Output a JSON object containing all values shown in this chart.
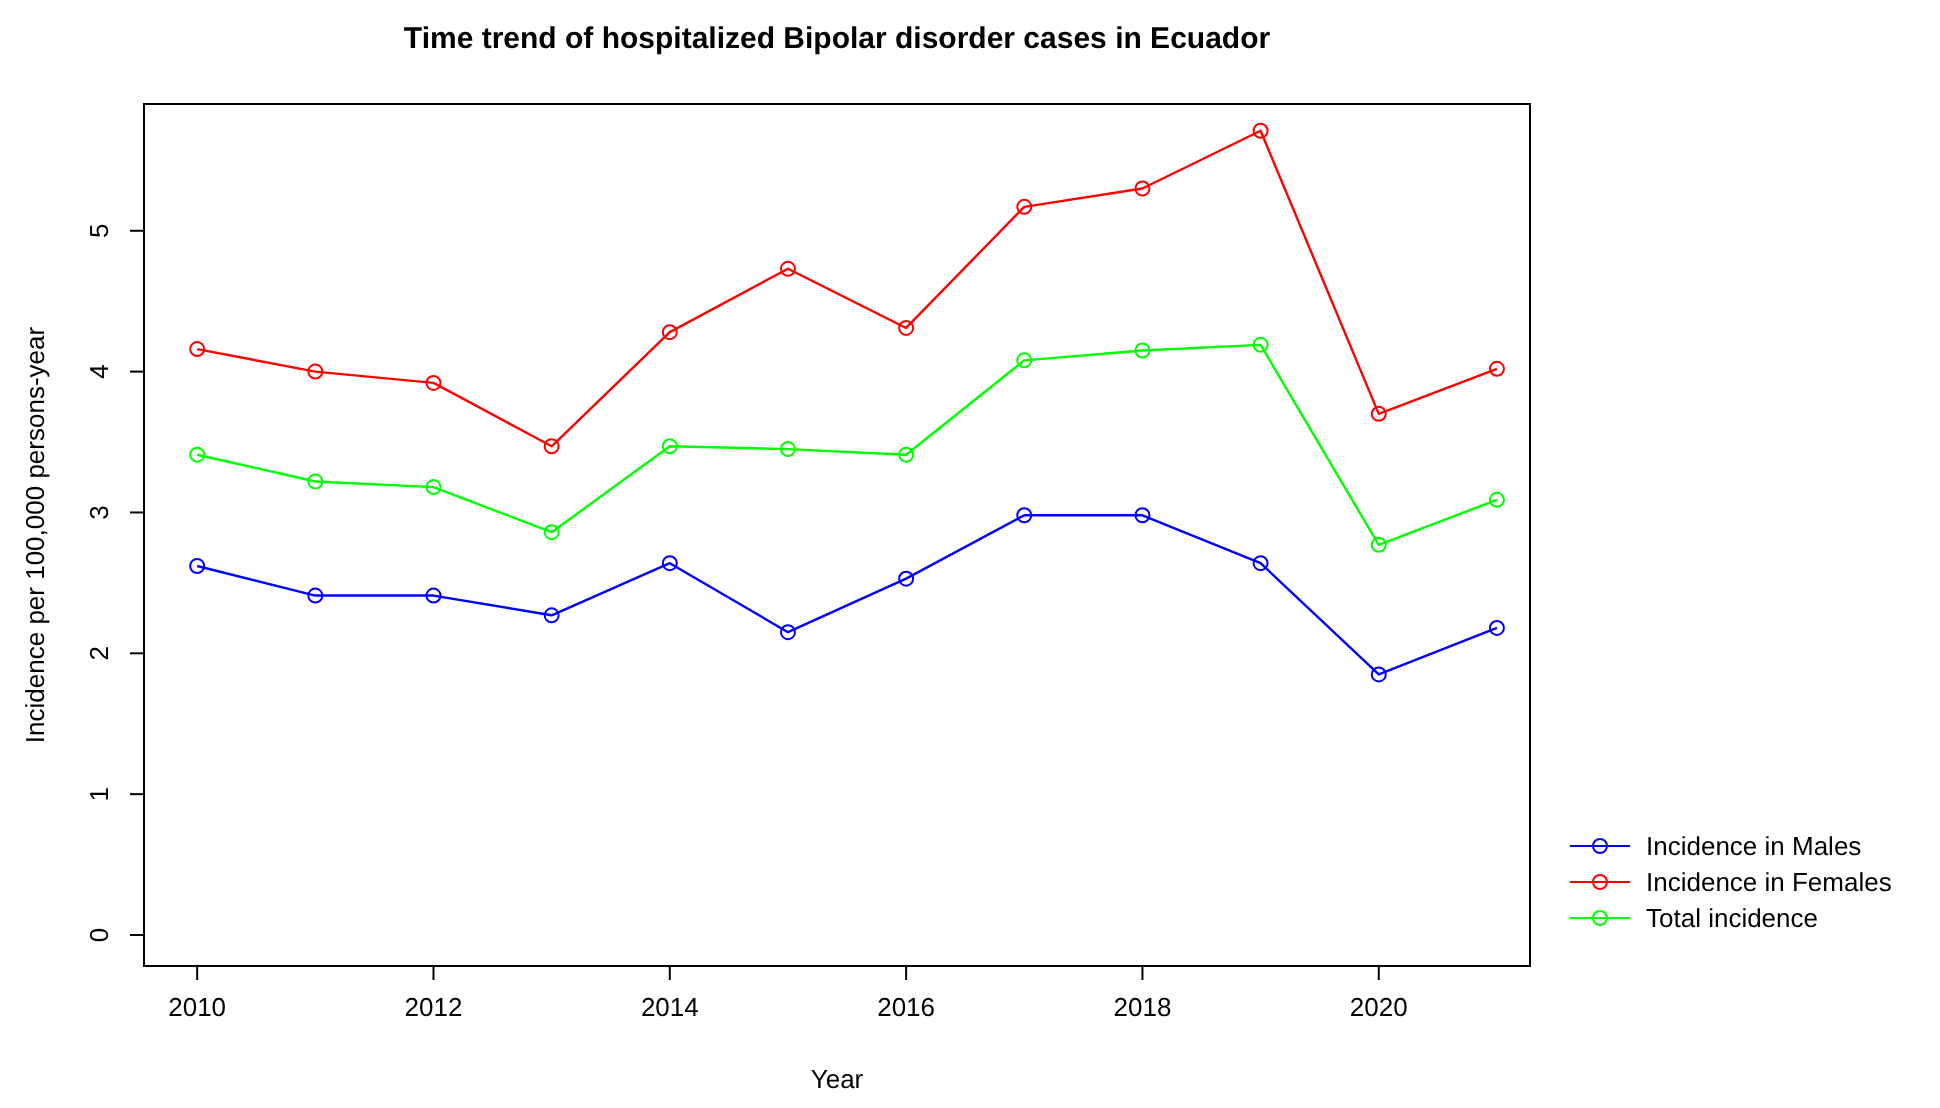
{
  "chart_data": {
    "type": "line",
    "title": "Time trend of hospitalized Bipolar disorder cases in Ecuador",
    "xlabel": "Year",
    "ylabel": "Incidence per 100,000 persons-year",
    "x": [
      2010,
      2011,
      2012,
      2013,
      2014,
      2015,
      2016,
      2017,
      2018,
      2019,
      2020,
      2021
    ],
    "series": [
      {
        "name": "Incidence in Males",
        "color": "#0000ff",
        "values": [
          2.62,
          2.41,
          2.41,
          2.27,
          2.64,
          2.15,
          2.53,
          2.98,
          2.98,
          2.64,
          1.85,
          2.18
        ]
      },
      {
        "name": "Incidence in Females",
        "color": "#ff0000",
        "values": [
          4.16,
          4.0,
          3.92,
          3.47,
          4.28,
          4.73,
          4.31,
          5.17,
          5.3,
          5.71,
          3.7,
          4.02
        ]
      },
      {
        "name": "Total incidence",
        "color": "#00ff00",
        "values": [
          3.41,
          3.22,
          3.18,
          2.86,
          3.47,
          3.45,
          3.41,
          4.08,
          4.15,
          4.19,
          2.77,
          3.09
        ]
      }
    ],
    "xlim": [
      2009.55,
      2021.28
    ],
    "ylim": [
      -0.22,
      5.9
    ],
    "xticks": [
      2010,
      2012,
      2014,
      2016,
      2018,
      2020
    ],
    "yticks": [
      0,
      1,
      2,
      3,
      4,
      5
    ],
    "marker": "circle",
    "line_style": "solid",
    "grid": false,
    "legend": "bottom right"
  }
}
